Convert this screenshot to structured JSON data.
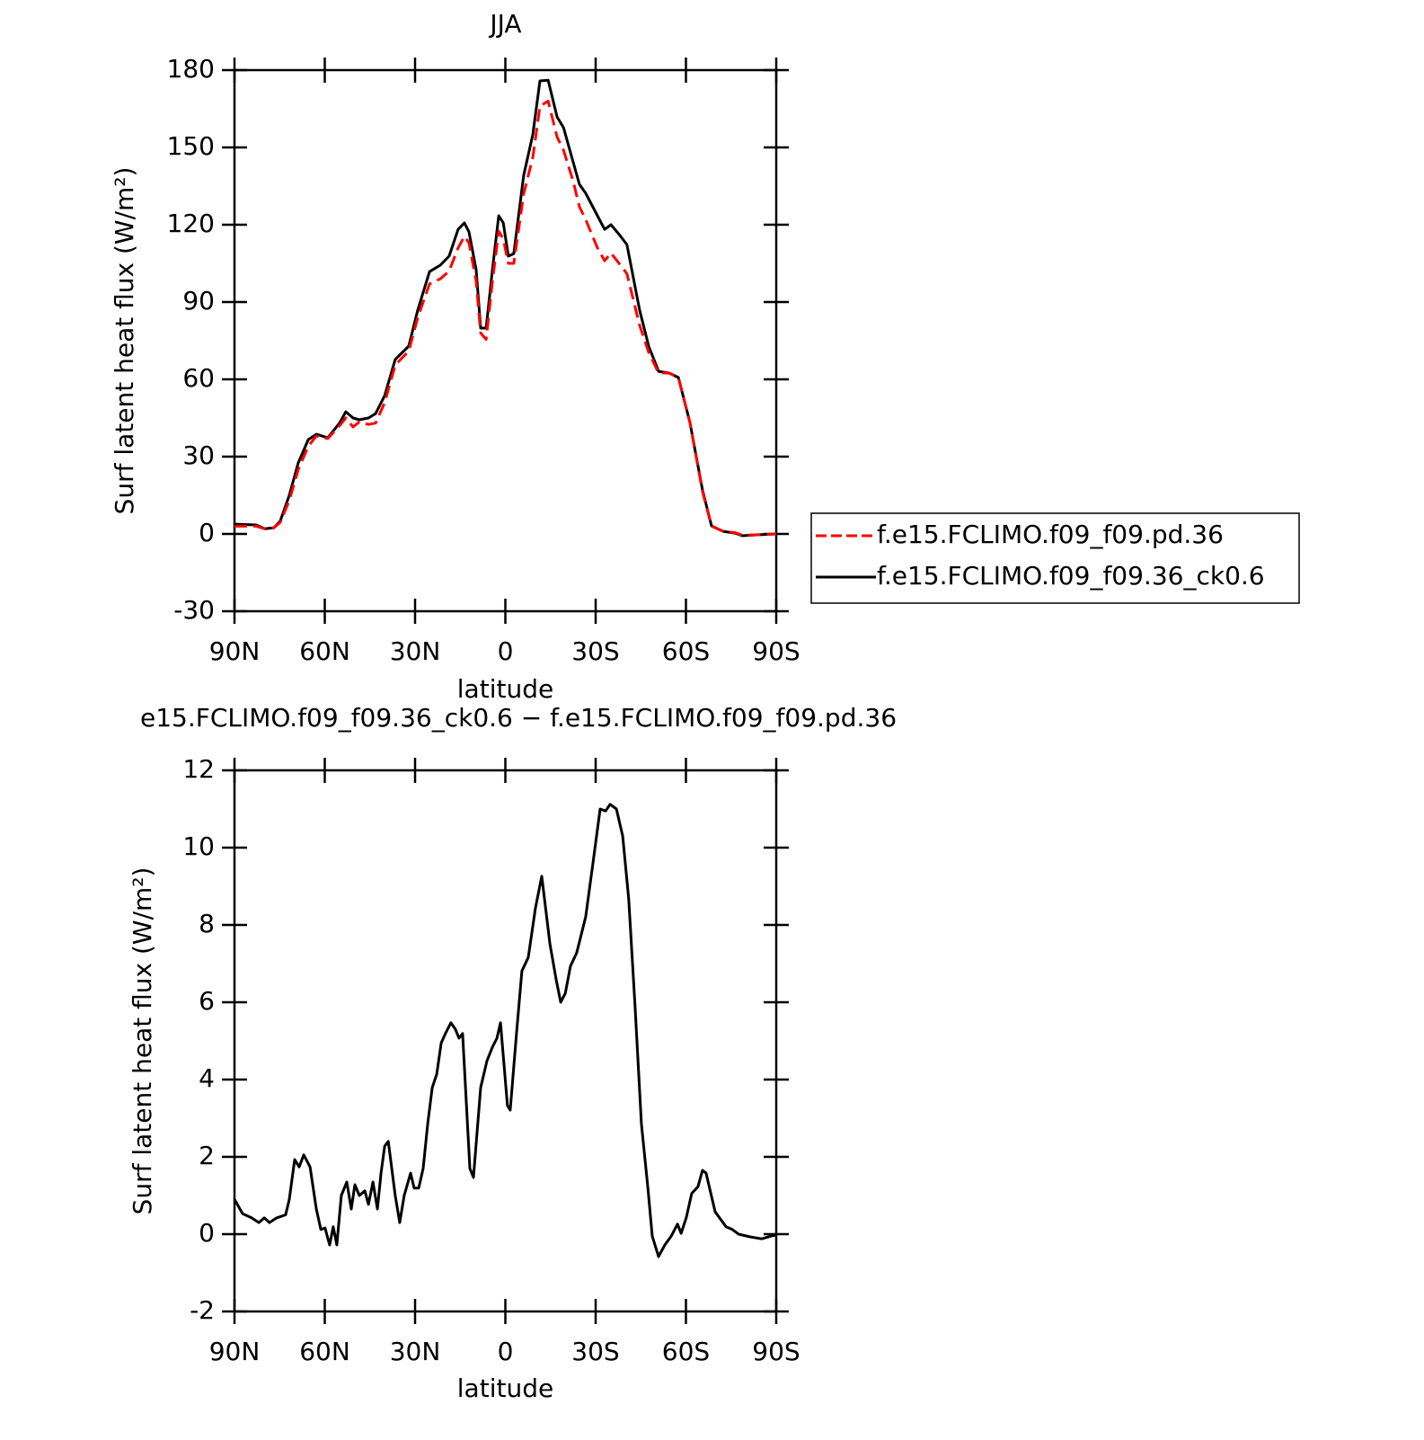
{
  "chart_data": [
    {
      "type": "line",
      "title": "JJA",
      "xlabel": "latitude",
      "ylabel": "Surf latent heat flux (W/m²)",
      "x": [
        90,
        82.8,
        79.9,
        76.9,
        74.8,
        71.8,
        68.8,
        65.5,
        62.8,
        59,
        55.1,
        53,
        50.6,
        48.5,
        45.5,
        43.1,
        40.1,
        36.6,
        32.1,
        29.1,
        25.2,
        21.6,
        18.7,
        15.7,
        13.6,
        12.1,
        9.7,
        8.2,
        6.4,
        4.3,
        2.2,
        0.7,
        -1,
        -2.8,
        -6.1,
        -9.1,
        -11.5,
        -14.2,
        -17.2,
        -19.3,
        -22.5,
        -24.6,
        -26.7,
        -30.6,
        -33,
        -35.1,
        -38.1,
        -40.4,
        -44.6,
        -47.6,
        -50.9,
        -54.5,
        -57.5,
        -61.3,
        -65.5,
        -68.5,
        -72.4,
        -76.3,
        -78.7,
        -84.3,
        -90
      ],
      "series": [
        {
          "name": "f.e15.FCLIMO.f09_f09.pd.36",
          "color": "#ff0000",
          "dashed": true,
          "values": [
            3,
            3,
            2,
            2.4,
            4.5,
            13,
            25,
            34,
            38,
            37,
            42,
            45,
            41.5,
            43.5,
            42.5,
            43,
            51,
            65.5,
            71,
            84,
            97,
            99,
            102,
            111,
            115.5,
            113,
            98,
            78,
            75.5,
            98,
            117.5,
            114.5,
            105,
            105,
            132,
            146,
            166,
            168,
            154,
            149,
            137,
            127,
            122,
            111,
            106,
            109,
            104.5,
            101,
            81,
            70.5,
            62.5,
            62.4,
            60.7,
            43.3,
            16.5,
            3,
            1,
            0.5,
            -0.5,
            -0.3,
            0
          ]
        },
        {
          "name": "f.e15.FCLIMO.f09_f09.36_ck0.6",
          "color": "#000000",
          "dashed": false,
          "values": [
            3.8,
            3.5,
            2,
            2.4,
            5,
            15,
            27.6,
            36.6,
            38.7,
            37.3,
            43,
            47.4,
            45,
            44.3,
            45,
            46.7,
            53.7,
            67.7,
            72.9,
            86.9,
            101.8,
            104.3,
            107.8,
            118.2,
            120.7,
            117.2,
            102.5,
            79.9,
            79.9,
            102.5,
            123.5,
            120.7,
            107.8,
            108.8,
            139.2,
            154.9,
            175.8,
            176.1,
            161.8,
            157.7,
            144.4,
            135.7,
            132.2,
            123.5,
            118.2,
            120,
            115.8,
            112.3,
            86.9,
            72.9,
            63.1,
            62.4,
            60.7,
            43.3,
            17.1,
            3.1,
            1,
            0.3,
            -0.7,
            -0.3,
            0
          ]
        }
      ],
      "xlim": [
        90,
        -90
      ],
      "xticks": [
        {
          "value": 90,
          "label": "90N"
        },
        {
          "value": 60,
          "label": "60N"
        },
        {
          "value": 30,
          "label": "30N"
        },
        0,
        {
          "value": -30,
          "label": "30S"
        },
        {
          "value": -60,
          "label": "60S"
        },
        {
          "value": -90,
          "label": "90S"
        }
      ],
      "ylim": [
        -30,
        180
      ],
      "yticks": [
        -30,
        0,
        30,
        60,
        90,
        120,
        150,
        180
      ],
      "legend": "right"
    },
    {
      "type": "line",
      "title": "e15.FCLIMO.f09_f09.36_ck0.6 − f.e15.FCLIMO.f09_f09.pd.36",
      "xlabel": "latitude",
      "ylabel": "Surf latent heat flux (W/m²)",
      "x": [
        90,
        87.3,
        84.3,
        81.9,
        80.1,
        78.4,
        76,
        73,
        71.8,
        70,
        68.5,
        67,
        64.9,
        62.8,
        61.3,
        59.9,
        58.4,
        57.2,
        56,
        54.5,
        52.7,
        51.2,
        50,
        48.5,
        46.7,
        45.5,
        44,
        42.5,
        41.3,
        40.1,
        38.9,
        36.6,
        35.1,
        33.6,
        31.5,
        30.3,
        28.8,
        27.3,
        25.8,
        24.3,
        22.8,
        21.3,
        19.9,
        18.1,
        16.6,
        15.4,
        14.2,
        11.8,
        10.6,
        8.2,
        6.1,
        4.3,
        2.8,
        1.6,
        -0.7,
        -1.6,
        -3.7,
        -5.5,
        -7.6,
        -10,
        -12.1,
        -14.8,
        -16.9,
        -18.4,
        -19.9,
        -21.6,
        -23.7,
        -26.7,
        -29.1,
        -31.5,
        -33.3,
        -34.8,
        -36.9,
        -39,
        -41,
        -43.1,
        -45.2,
        -47.3,
        -48.8,
        -50.9,
        -53,
        -55.1,
        -57.2,
        -58.4,
        -60.1,
        -61.9,
        -64,
        -65.5,
        -66.7,
        -69.7,
        -73.3,
        -75.4,
        -77.5,
        -81.3,
        -85.2,
        -88.2,
        -90
      ],
      "color": "#000000",
      "values": [
        0.9,
        0.53,
        0.42,
        0.3,
        0.42,
        0.3,
        0.42,
        0.5,
        0.9,
        1.93,
        1.74,
        2.05,
        1.74,
        0.65,
        0.12,
        0.16,
        -0.28,
        0.19,
        -0.28,
        1.0,
        1.35,
        0.65,
        1.28,
        1.0,
        1.12,
        0.77,
        1.35,
        0.65,
        1.58,
        2.28,
        2.4,
        1.0,
        0.3,
        1.0,
        1.58,
        1.19,
        1.19,
        1.7,
        2.86,
        3.79,
        4.14,
        4.95,
        5.19,
        5.47,
        5.3,
        5.07,
        5.19,
        1.7,
        1.47,
        3.79,
        4.49,
        4.84,
        5.07,
        5.47,
        3.33,
        3.21,
        5.19,
        6.81,
        7.16,
        8.44,
        9.26,
        7.51,
        6.58,
        6.0,
        6.23,
        6.93,
        7.28,
        8.21,
        9.6,
        11.0,
        10.95,
        11.12,
        11.0,
        10.3,
        8.67,
        5.88,
        2.86,
        1.23,
        -0.05,
        -0.58,
        -0.28,
        -0.05,
        0.26,
        0.02,
        0.42,
        1.05,
        1.23,
        1.65,
        1.58,
        0.58,
        0.19,
        0.12,
        0,
        -0.07,
        -0.12,
        -0.05,
        -0.02
      ],
      "xlim": [
        90,
        -90
      ],
      "xticks": [
        {
          "value": 90,
          "label": "90N"
        },
        {
          "value": 60,
          "label": "60N"
        },
        {
          "value": 30,
          "label": "30N"
        },
        0,
        {
          "value": -30,
          "label": "30S"
        },
        {
          "value": -60,
          "label": "60S"
        },
        {
          "value": -90,
          "label": "90S"
        }
      ],
      "ylim": [
        -2,
        12
      ],
      "yticks": [
        -2,
        0,
        2,
        4,
        6,
        8,
        10,
        12
      ]
    }
  ]
}
